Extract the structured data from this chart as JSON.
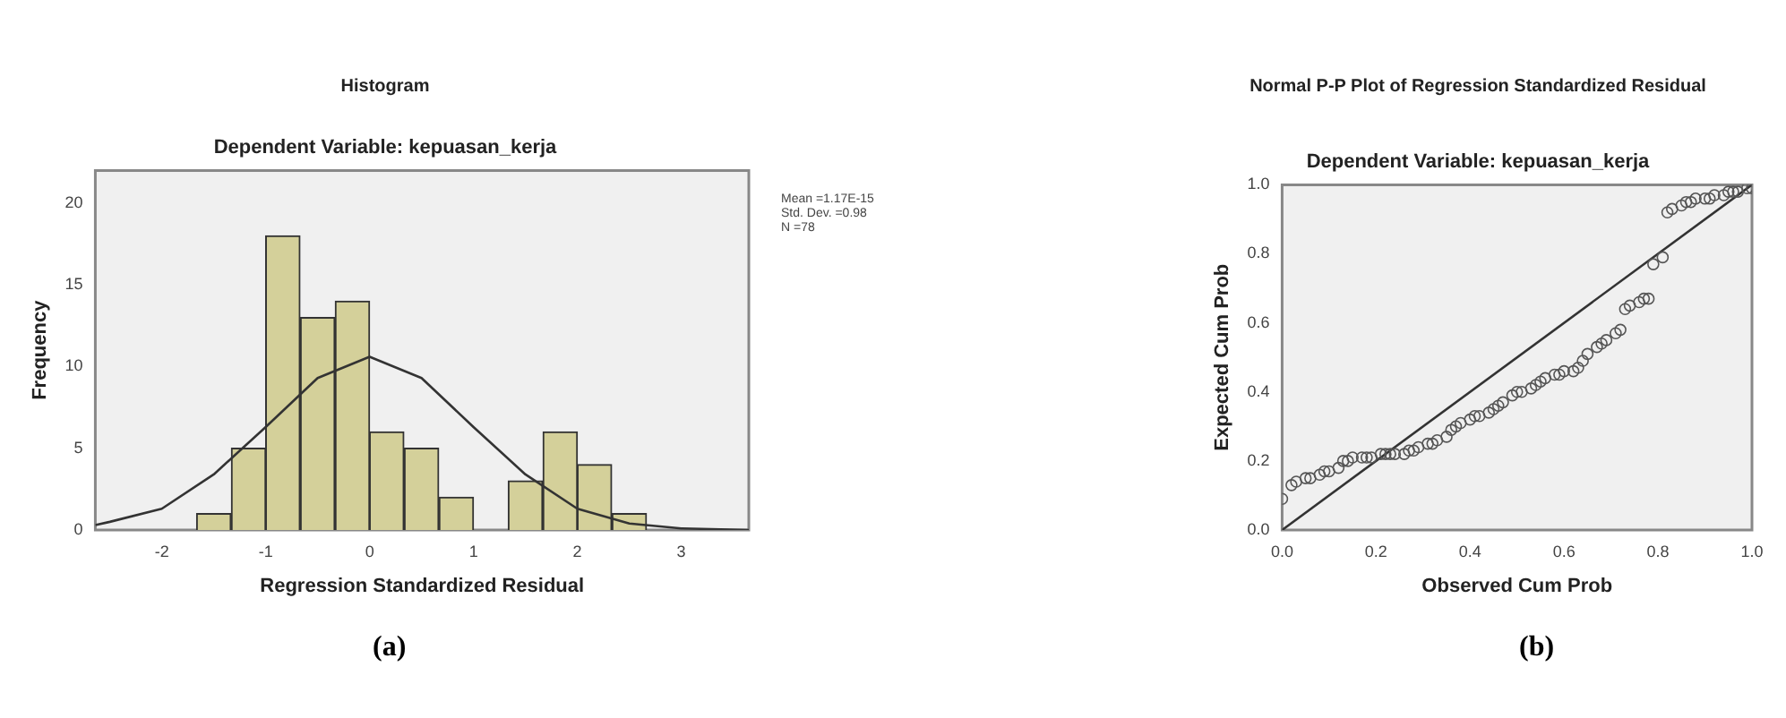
{
  "chart_data": [
    {
      "type": "histogram",
      "title": "Histogram",
      "subtitle": "Dependent Variable: kepuasan_kerja",
      "xlabel": "Regression Standardized Residual",
      "ylabel": "Frequency",
      "bins": [
        -1.67,
        -1.33,
        -1,
        -0.67,
        -0.33,
        0,
        0.33,
        0.67,
        1,
        1.33,
        1.67,
        2,
        2.33,
        2.67
      ],
      "values": [
        1,
        5,
        18,
        13,
        14,
        6,
        5,
        2,
        0,
        3,
        6,
        4,
        1
      ],
      "color": "#d4d09a",
      "series": [
        {
          "type": "line",
          "color": "#333333",
          "x": [
            -2.64,
            -2.5,
            -2,
            -1.5,
            -1,
            -0.5,
            0,
            0.5,
            1,
            1.5,
            2,
            2.5,
            3,
            3.65
          ],
          "values": [
            0.3,
            0.5,
            1.3,
            3.4,
            6.3,
            9.3,
            10.6,
            9.3,
            6.3,
            3.4,
            1.3,
            0.4,
            0.1,
            0
          ]
        }
      ],
      "xlim": [
        -2.64,
        3.65
      ],
      "xticks": [
        -2,
        -1,
        0,
        1,
        2,
        3
      ],
      "ylim": [
        0,
        22
      ],
      "yticks": [
        0,
        5,
        10,
        15,
        20
      ],
      "grid": false,
      "legend": false,
      "annotations": [
        "Mean =1.17E-15",
        "Std. Dev. =0.98",
        "N =78",
        "(a)"
      ]
    },
    {
      "type": "scatter",
      "title": "Normal P-P Plot of Regression Standardized Residual",
      "subtitle": "Dependent Variable: kepuasan_kerja",
      "xlabel": "Observed Cum Prob",
      "ylabel": "Expected Cum Prob",
      "series": [
        {
          "type": "scatter",
          "color": "#555555",
          "marker": "circle",
          "x": [
            0,
            0.02,
            0.03,
            0.05,
            0.06,
            0.08,
            0.09,
            0.1,
            0.12,
            0.13,
            0.14,
            0.15,
            0.17,
            0.18,
            0.19,
            0.21,
            0.22,
            0.23,
            0.24,
            0.26,
            0.27,
            0.28,
            0.29,
            0.31,
            0.32,
            0.33,
            0.35,
            0.36,
            0.37,
            0.38,
            0.4,
            0.41,
            0.42,
            0.44,
            0.45,
            0.46,
            0.47,
            0.49,
            0.5,
            0.51,
            0.53,
            0.54,
            0.55,
            0.56,
            0.58,
            0.59,
            0.6,
            0.62,
            0.63,
            0.64,
            0.65,
            0.67,
            0.68,
            0.69,
            0.71,
            0.72,
            0.73,
            0.74,
            0.76,
            0.77,
            0.78,
            0.79,
            0.81,
            0.82,
            0.83,
            0.85,
            0.86,
            0.87,
            0.88,
            0.9,
            0.91,
            0.92,
            0.94,
            0.95,
            0.96,
            0.97,
            0.99,
            1
          ],
          "values": [
            0.09,
            0.13,
            0.14,
            0.15,
            0.15,
            0.16,
            0.17,
            0.17,
            0.18,
            0.2,
            0.2,
            0.21,
            0.21,
            0.21,
            0.21,
            0.22,
            0.22,
            0.22,
            0.22,
            0.22,
            0.23,
            0.23,
            0.24,
            0.25,
            0.25,
            0.26,
            0.27,
            0.29,
            0.3,
            0.31,
            0.32,
            0.33,
            0.33,
            0.34,
            0.35,
            0.36,
            0.37,
            0.39,
            0.4,
            0.4,
            0.41,
            0.42,
            0.43,
            0.44,
            0.45,
            0.45,
            0.46,
            0.46,
            0.47,
            0.49,
            0.51,
            0.53,
            0.54,
            0.55,
            0.57,
            0.58,
            0.64,
            0.65,
            0.66,
            0.67,
            0.67,
            0.77,
            0.79,
            0.92,
            0.93,
            0.94,
            0.95,
            0.95,
            0.96,
            0.96,
            0.96,
            0.97,
            0.97,
            0.98,
            0.98,
            0.98,
            0.99,
            0.99
          ]
        },
        {
          "type": "line",
          "color": "#333333",
          "x": [
            0,
            1
          ],
          "values": [
            0,
            1
          ]
        }
      ],
      "xlim": [
        0,
        1
      ],
      "xticks": [
        {
          "value": 0,
          "label": "0.0"
        },
        0.2,
        0.4,
        0.6,
        0.8,
        {
          "value": 1,
          "label": "1.0"
        }
      ],
      "ylim": [
        0,
        1
      ],
      "yticks": [
        {
          "value": 0,
          "label": "0.0"
        },
        0.2,
        0.4,
        0.6,
        0.8,
        {
          "value": 1,
          "label": "1.0"
        }
      ],
      "grid": false,
      "legend": false,
      "annotations": [
        "(b)"
      ]
    }
  ]
}
